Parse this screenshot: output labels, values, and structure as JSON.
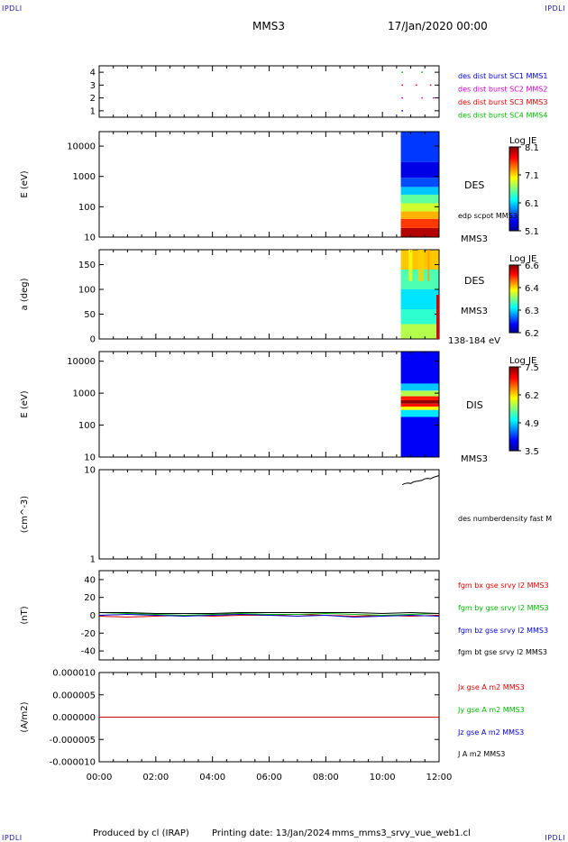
{
  "header": {
    "corner_tl": "IPDLI",
    "corner_tr": "IPDLI",
    "corner_bl": "IPDLI",
    "corner_br": "IPDLI",
    "spacecraft": "MMS3",
    "datetime": "17/Jan/2020 00:00"
  },
  "footer": {
    "produced_by": "Produced by cl (IRAP)",
    "printing_date": "Printing date: 13/Jan/2024",
    "file_name": "mms_mms3_srvy_vue_web1.cl"
  },
  "colors": {
    "blue": "#0000cc",
    "magenta": "#cc00cc",
    "red": "#dd0000",
    "green": "#00bb00",
    "black": "#000000"
  },
  "chart_data": [
    {
      "type": "scatter",
      "id": "availability",
      "ylabel": "",
      "ylim": [
        0.5,
        4.5
      ],
      "yticks": [
        "1",
        "2",
        "3",
        "4"
      ],
      "legend": [
        {
          "label": "des dist burst SC1 MMS1",
          "color": "#0000cc"
        },
        {
          "label": "des dist burst SC2 MMS2",
          "color": "#cc00cc"
        },
        {
          "label": "des dist burst SC3 MMS3",
          "color": "#dd0000"
        },
        {
          "label": "des dist burst SC4 MMS4",
          "color": "#00bb00"
        }
      ],
      "points": [
        [
          10.7,
          4
        ],
        [
          11.4,
          4
        ],
        [
          10.7,
          3
        ],
        [
          11.2,
          3
        ],
        [
          11.7,
          3
        ],
        [
          10.7,
          2
        ],
        [
          11.4,
          2
        ],
        [
          11.8,
          2
        ],
        [
          10.7,
          1
        ]
      ]
    },
    {
      "type": "heatmap",
      "id": "des-energy",
      "ylabel": "E (eV)",
      "yscale": "log",
      "ylim": [
        10,
        30000
      ],
      "yticks": [
        "10",
        "100",
        "1000",
        "10000"
      ],
      "data_start_hour": 10.65,
      "instrument": "DES",
      "spacecraft": "MMS3",
      "overlay_label": "edp scpot MMS3",
      "colorbar": {
        "title": "Log JE",
        "ticks": [
          "8.1",
          "7.1",
          "6.1",
          "5.1"
        ]
      },
      "bands": [
        {
          "from": 10,
          "to": 20,
          "level": 0.95
        },
        {
          "from": 20,
          "to": 40,
          "level": 0.82
        },
        {
          "from": 40,
          "to": 70,
          "level": 0.7
        },
        {
          "from": 70,
          "to": 130,
          "level": 0.58
        },
        {
          "from": 130,
          "to": 250,
          "level": 0.47
        },
        {
          "from": 250,
          "to": 450,
          "level": 0.32
        },
        {
          "from": 450,
          "to": 900,
          "level": 0.2
        },
        {
          "from": 900,
          "to": 3000,
          "level": 0.1
        },
        {
          "from": 3000,
          "to": 30000,
          "level": 0.18
        }
      ]
    },
    {
      "type": "heatmap",
      "id": "des-pitch",
      "ylabel": "a (deg)",
      "ylim": [
        0,
        180
      ],
      "yticks": [
        "0",
        "50",
        "100",
        "150"
      ],
      "data_start_hour": 10.65,
      "instrument": "DES",
      "spacecraft": "MMS3",
      "energy_range": "138-184 eV",
      "colorbar": {
        "title": "Log JE",
        "ticks": [
          "6.6",
          "6.4",
          "6.3",
          "6.2"
        ]
      },
      "bands": [
        {
          "from": 0,
          "to": 30,
          "level": 0.55
        },
        {
          "from": 30,
          "to": 60,
          "level": 0.42
        },
        {
          "from": 60,
          "to": 100,
          "level": 0.35
        },
        {
          "from": 100,
          "to": 140,
          "level": 0.45
        },
        {
          "from": 140,
          "to": 180,
          "level": 0.68
        }
      ]
    },
    {
      "type": "heatmap",
      "id": "dis-energy",
      "ylabel": "E (eV)",
      "yscale": "log",
      "ylim": [
        10,
        20000
      ],
      "yticks": [
        "10",
        "100",
        "1000",
        "10000"
      ],
      "data_start_hour": 10.65,
      "instrument": "DIS",
      "spacecraft": "MMS3",
      "colorbar": {
        "title": "Log JE",
        "ticks": [
          "7.5",
          "6.2",
          "4.9",
          "3.5"
        ]
      },
      "bands": [
        {
          "from": 10,
          "to": 180,
          "level": 0.12
        },
        {
          "from": 180,
          "to": 300,
          "level": 0.35
        },
        {
          "from": 300,
          "to": 380,
          "level": 0.62
        },
        {
          "from": 380,
          "to": 470,
          "level": 0.86
        },
        {
          "from": 470,
          "to": 600,
          "level": 0.98
        },
        {
          "from": 600,
          "to": 800,
          "level": 0.85
        },
        {
          "from": 800,
          "to": 1200,
          "level": 0.55
        },
        {
          "from": 1200,
          "to": 2000,
          "level": 0.32
        },
        {
          "from": 2000,
          "to": 20000,
          "level": 0.12
        }
      ]
    },
    {
      "type": "line",
      "id": "density",
      "ylabel": "(cm^-3)",
      "yscale": "log",
      "ylim": [
        1,
        10
      ],
      "yticks": [
        "1",
        "10"
      ],
      "legend": [
        {
          "label": "des numberdensity fast M",
          "color": "#000000"
        }
      ],
      "series": [
        {
          "x": [
            10.7,
            10.8,
            10.9,
            11.0,
            11.1,
            11.2,
            11.3,
            11.4,
            11.5,
            11.6,
            11.7,
            11.8,
            11.9,
            12.0
          ],
          "y": [
            6.8,
            7.0,
            7.1,
            7.0,
            7.3,
            7.4,
            7.5,
            7.6,
            7.9,
            8.0,
            7.9,
            8.2,
            8.4,
            8.6
          ]
        }
      ]
    },
    {
      "type": "line",
      "id": "magnetic-field",
      "ylabel": "(nT)",
      "ylim": [
        -50,
        50
      ],
      "yticks": [
        "-40",
        "-20",
        "0",
        "20",
        "40"
      ],
      "legend": [
        {
          "label": "fgm bx gse srvy l2 MMS3",
          "color": "#dd0000"
        },
        {
          "label": "fgm by gse srvy l2 MMS3",
          "color": "#00bb00"
        },
        {
          "label": "fgm bz gse srvy l2 MMS3",
          "color": "#0000cc"
        },
        {
          "label": "fgm bt gse srvy l2 MMS3",
          "color": "#000000"
        }
      ],
      "series": [
        {
          "x": [
            0,
            1,
            2,
            3,
            4,
            5,
            6,
            7,
            8,
            9,
            10,
            11,
            12
          ],
          "y": [
            -1,
            -2,
            -1,
            0,
            -1,
            0,
            0,
            1,
            0,
            -1,
            0,
            -1,
            0
          ]
        },
        {
          "x": [
            0,
            1,
            2,
            3,
            4,
            5,
            6,
            7,
            8,
            9,
            10,
            11,
            12
          ],
          "y": [
            3,
            2,
            1,
            0,
            1,
            2,
            1,
            1,
            2,
            1,
            0,
            1,
            2
          ]
        },
        {
          "x": [
            0,
            1,
            2,
            3,
            4,
            5,
            6,
            7,
            8,
            9,
            10,
            11,
            12
          ],
          "y": [
            0,
            1,
            0,
            -1,
            0,
            1,
            0,
            -1,
            0,
            -2,
            -1,
            0,
            -1
          ]
        },
        {
          "x": [
            0,
            1,
            2,
            3,
            4,
            5,
            6,
            7,
            8,
            9,
            10,
            11,
            12
          ],
          "y": [
            3,
            3,
            2,
            2,
            2,
            3,
            3,
            3,
            3,
            3,
            2,
            3,
            2
          ]
        }
      ]
    },
    {
      "type": "line",
      "id": "current-density",
      "ylabel": "(A/m2)",
      "ylim": [
        -1e-05,
        1e-05
      ],
      "yticks": [
        "-0.000010",
        "-0.000005",
        "0.000000",
        "0.000005",
        "0.000010"
      ],
      "xlim": [
        0,
        12
      ],
      "xticks": [
        "00:00",
        "02:00",
        "04:00",
        "06:00",
        "08:00",
        "10:00",
        "12:00"
      ],
      "legend": [
        {
          "label": "Jx gse A m2 MMS3",
          "color": "#dd0000"
        },
        {
          "label": "Jy gse A m2 MMS3",
          "color": "#00bb00"
        },
        {
          "label": "Jz gse A m2 MMS3",
          "color": "#0000cc"
        },
        {
          "label": "J A m2 MMS3",
          "color": "#000000"
        }
      ],
      "series": [
        {
          "x": [
            0,
            12
          ],
          "y": [
            0,
            0
          ]
        }
      ]
    }
  ]
}
